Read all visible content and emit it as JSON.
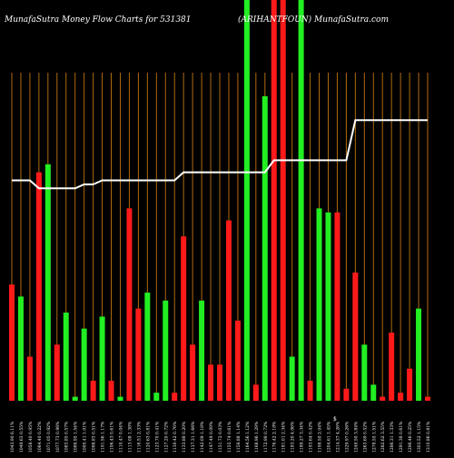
{
  "header": {
    "left": "MunafaSutra  Money Flow  Charts for 531381",
    "right": "(ARIHANTFOUN) MunafaSutra.com"
  },
  "chart_data": {
    "type": "bar",
    "title": "MunafaSutra  Money Flow  Charts for 531381",
    "subtitle": "(ARIHANTFOUN) MunafaSutra.com",
    "background": "#000000",
    "gridline_color": "#b06a10",
    "up_color": "#22ee22",
    "down_color": "#ff1a1a",
    "line_color": "#ffffff",
    "ylim": [
      0,
      100
    ],
    "grid": "vertical lines at each bar",
    "categories": [
      "1043.90 6.11%",
      "1049.63 0.55%",
      "1058.40 0.95%",
      "1064.40 0.22%",
      "1071.05 0.92%",
      "1077.73 0.96%",
      "1083.85 0.57%",
      "1089.95 1.54%",
      "1095.41 1.01%",
      "1098.83 0.51%",
      "1101.56 1.17%",
      "1106.43 0.61%",
      "1110.47 0.04%",
      "1113.08 1.38%",
      "1116.51 2.33%",
      "1120.63 0.81%",
      "1123.70 0.41%",
      "1127.20 0.72%",
      "1130.42 0.76%",
      "1133.88 0.20%",
      "1137.31 1.66%",
      "1142.09 1.18%",
      "1147.49 0.09%",
      "1151.72 0.03%",
      "1155.74 0.61%",
      "1158.88 1.14%",
      "1164.56 1.12%",
      "1168.96 1.29%",
      "1172.98 0.72%",
      "1176.42 2.18%",
      "1181.01 2.34%",
      "1183.20 4.06%",
      "1189.27 3.34%",
      "1193.64 0.42%",
      "1198.50 2.04%",
      "1204.61 1.45%",
      "1214.37 4.26%",
      "1229.97 0.26%",
      "1249.50 3.84%",
      "1263.69 0.52%",
      "1278.55 1.51%",
      "1282.62 3.55%",
      "1286.31 1.33%",
      "1291.38 0.61%",
      "1296.46 0.25%",
      "1303.52 1.15%",
      "1310.86 0.81%"
    ],
    "colors": [
      "down",
      "up",
      "down",
      "down",
      "up",
      "down",
      "up",
      "up",
      "up",
      "down",
      "up",
      "down",
      "up",
      "down",
      "down",
      "up",
      "up",
      "up",
      "down",
      "down",
      "down",
      "up",
      "down",
      "down",
      "down",
      "down",
      "up",
      "down",
      "up",
      "down",
      "down",
      "up",
      "up",
      "down",
      "up",
      "up",
      "down",
      "down",
      "down",
      "up",
      "up",
      "down",
      "down",
      "down",
      "down",
      "up",
      "down"
    ],
    "values": [
      29,
      26,
      11,
      57,
      59,
      14,
      22,
      1,
      18,
      5,
      21,
      5,
      1,
      48,
      23,
      27,
      2,
      25,
      2,
      41,
      14,
      25,
      9,
      9,
      45,
      20,
      100,
      4,
      76,
      100,
      100,
      11,
      100,
      5,
      48,
      47,
      47,
      3,
      32,
      14,
      4,
      1,
      17,
      2,
      8,
      23,
      1
    ],
    "series": [
      {
        "values": [
          55,
          55,
          55,
          53,
          53,
          53,
          53,
          53,
          54,
          54,
          55,
          55,
          55,
          55,
          55,
          55,
          55,
          55,
          55,
          57,
          57,
          57,
          57,
          57,
          57,
          57,
          57,
          57,
          57,
          60,
          60,
          60,
          60,
          60,
          60,
          60,
          60,
          60,
          70,
          70,
          70,
          70,
          70,
          70,
          70,
          70,
          70
        ]
      }
    ],
    "footer_label": "$"
  }
}
